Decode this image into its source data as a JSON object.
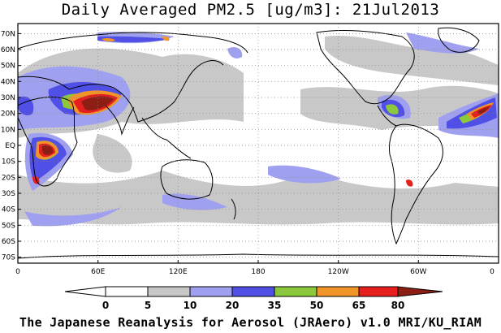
{
  "title": "Daily Averaged PM2.5 [ug/m3]: 21Jul2013",
  "footer": "The Japanese Reanalysis for Aerosol (JRAero) v1.0 MRI/KU_RIAM",
  "map": {
    "lon_range": [
      0,
      360
    ],
    "lat_range": [
      -75,
      75
    ],
    "x_ticks": [
      "0",
      "60E",
      "120E",
      "180",
      "120W",
      "60W",
      "0"
    ],
    "y_ticks": [
      "70N",
      "60N",
      "50N",
      "40N",
      "30N",
      "20N",
      "10N",
      "EQ",
      "10S",
      "20S",
      "30S",
      "40S",
      "50S",
      "60S",
      "70S"
    ],
    "grid": "dotted"
  },
  "colorbar": {
    "levels": [
      "0",
      "5",
      "10",
      "20",
      "35",
      "50",
      "65",
      "80"
    ],
    "colors": [
      "#ffffff",
      "#c8c8c8",
      "#a0a0f0",
      "#5050e6",
      "#8cc83c",
      "#f09628",
      "#e61e1e",
      "#8c1e14"
    ],
    "extend": "both"
  }
}
